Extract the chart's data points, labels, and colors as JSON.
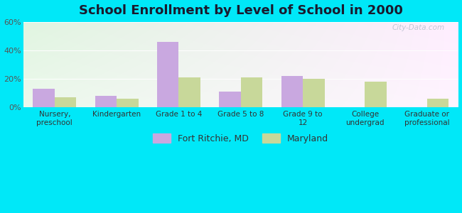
{
  "title": "School Enrollment by Level of School in 2000",
  "categories": [
    "Nursery,\npreschool",
    "Kindergarten",
    "Grade 1 to 4",
    "Grade 5 to 8",
    "Grade 9 to\n12",
    "College\nundergrad",
    "Graduate or\nprofessional"
  ],
  "fort_ritchie": [
    13,
    8,
    46,
    11,
    22,
    0,
    0
  ],
  "maryland": [
    7,
    6,
    21,
    21,
    20,
    18,
    6
  ],
  "fort_ritchie_color": "#c9a8e0",
  "maryland_color": "#c8d89a",
  "background_outer": "#00e8f8",
  "ylim": [
    0,
    60
  ],
  "yticks": [
    0,
    20,
    40,
    60
  ],
  "ytick_labels": [
    "0%",
    "20%",
    "40%",
    "60%"
  ],
  "title_fontsize": 13,
  "title_color": "#1a1a2e",
  "legend_label_1": "Fort Ritchie, MD",
  "legend_label_2": "Maryland",
  "watermark": "City-Data.com"
}
